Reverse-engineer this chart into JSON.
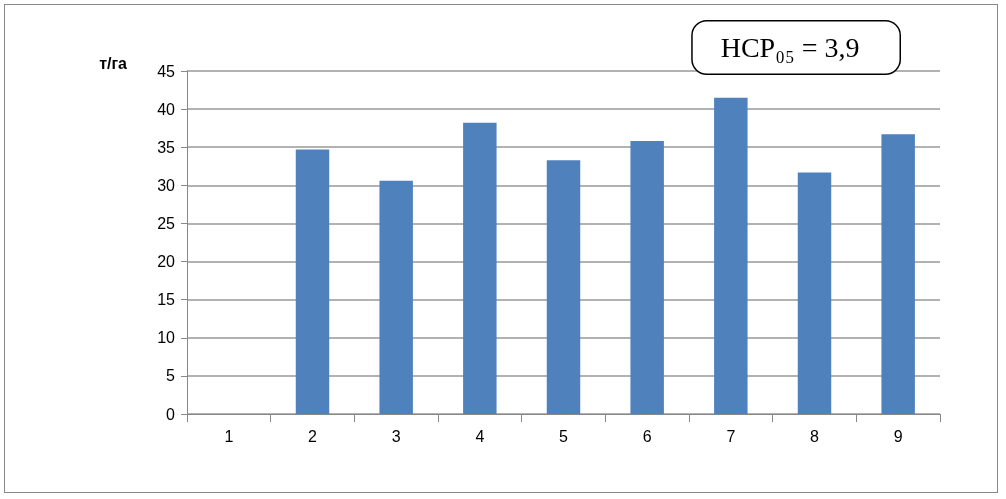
{
  "chart_data": {
    "type": "bar",
    "ylabel": "т/га",
    "categories": [
      "1",
      "2",
      "3",
      "4",
      "5",
      "6",
      "7",
      "8",
      "9"
    ],
    "values": [
      0,
      34.7,
      30.6,
      38.2,
      33.3,
      35.8,
      41.5,
      31.7,
      36.7
    ],
    "color": "#4f81bd",
    "ylim": [
      0,
      45
    ],
    "yticks": [
      0,
      5,
      10,
      15,
      20,
      25,
      30,
      35,
      40,
      45
    ],
    "grid": "y",
    "annotations": [
      "НСР₀₅ = 3,9"
    ]
  }
}
